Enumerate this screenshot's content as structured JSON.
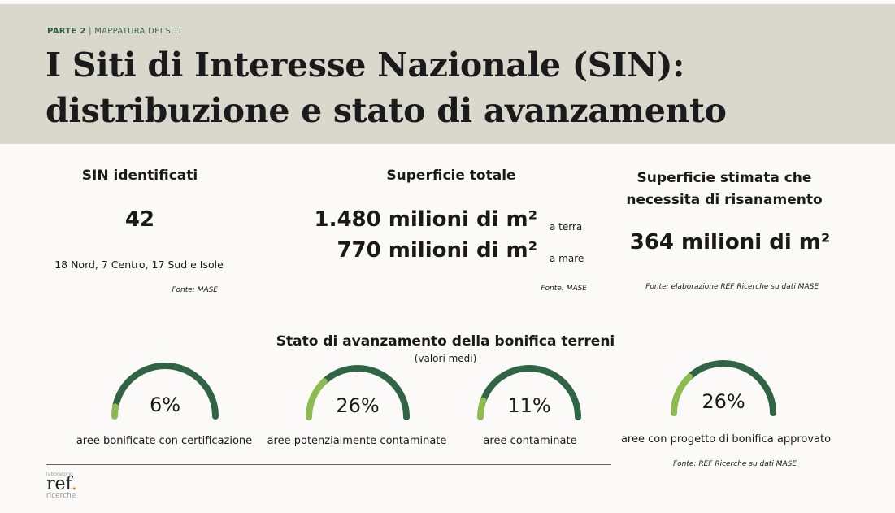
{
  "header": {
    "part": "PARTE 2",
    "separator": "|",
    "section": "MAPPATURA DEI SITI",
    "title_line1": "I Siti di Interesse Nazionale (SIN):",
    "title_line2": "distribuzione e stato di avanzamento"
  },
  "stats": {
    "sin": {
      "heading": "SIN identificati",
      "value": "42",
      "detail": "18 Nord, 7 Centro, 17 Sud e Isole",
      "source": "Fonte: MASE"
    },
    "surface": {
      "heading": "Superficie totale",
      "land_value": "1.480 milioni di m²",
      "land_label": "a terra",
      "sea_value": "770 milioni di m²",
      "sea_label": "a mare",
      "source": "Fonte: MASE"
    },
    "remediation": {
      "heading_line1": "Superficie stimata che",
      "heading_line2": "necessita di risanamento",
      "value": "364 milioni di m²",
      "source": "Fonte: elaborazione REF Ricerche su dati MASE"
    }
  },
  "progress": {
    "heading": "Stato di avanzamento della bonifica terreni",
    "subheading": "(valori medi)",
    "gauges": [
      {
        "percent": 6,
        "value_label": "6%",
        "label": "aree bonificate con certificazione"
      },
      {
        "percent": 26,
        "value_label": "26%",
        "label": "aree potenzialmente contaminate"
      },
      {
        "percent": 11,
        "value_label": "11%",
        "label": "aree contaminate"
      },
      {
        "percent": 26,
        "value_label": "26%",
        "label": "aree con progetto di bonifica approvato"
      }
    ],
    "source": "Fonte: REF Ricerche su dati MASE"
  },
  "logo": {
    "top": "laboratorio",
    "main": "ref",
    "dot": ".",
    "bottom": "ricerche"
  },
  "colors": {
    "header_bg": "#dad8cc",
    "gauge_track": "#2f6444",
    "gauge_fill": "#8cbc4f",
    "logo_dot": "#e07a22",
    "kicker": "#2e5b47"
  }
}
